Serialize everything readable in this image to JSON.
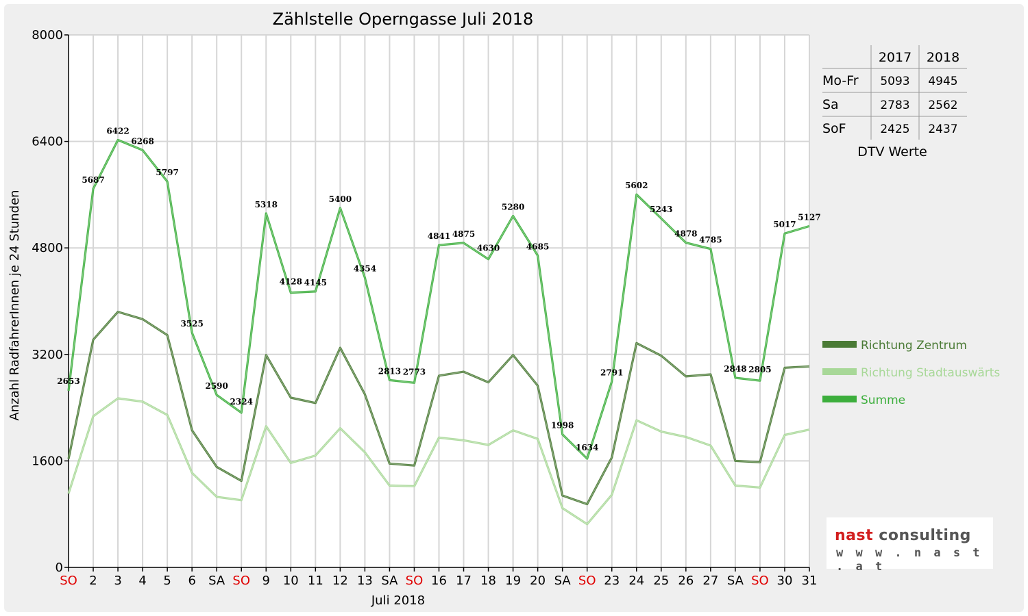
{
  "chart_data": {
    "type": "line",
    "title": "Zählstelle Operngasse Juli 2018",
    "xlabel": "Juli 2018",
    "ylabel": "Anzahl RadfahrerInnen je 24 Stunden",
    "ylim": [
      0,
      8000
    ],
    "yticks": [
      "0",
      "1600",
      "3200",
      "4800",
      "6400",
      "8000"
    ],
    "grid": true,
    "legend_position": "right",
    "categories": [
      "SO",
      "2",
      "3",
      "4",
      "5",
      "6",
      "SA",
      "SO",
      "9",
      "10",
      "11",
      "12",
      "13",
      "SA",
      "SO",
      "16",
      "17",
      "18",
      "19",
      "20",
      "SA",
      "SO",
      "23",
      "24",
      "25",
      "26",
      "27",
      "SA",
      "SO",
      "30",
      "31"
    ],
    "red_categories": [
      0,
      7,
      14,
      21,
      28
    ],
    "series": [
      {
        "name": "Richtung Zentrum",
        "color": "#4a7a35",
        "values": [
          1630,
          3420,
          3840,
          3730,
          3490,
          2060,
          1510,
          1300,
          3190,
          2550,
          2470,
          3300,
          2600,
          1560,
          1530,
          2880,
          2940,
          2780,
          3190,
          2730,
          1080,
          950,
          1650,
          3370,
          3180,
          2870,
          2900,
          1600,
          1580,
          3000,
          3020
        ]
      },
      {
        "name": "Richtung Stadtauswärts",
        "color": "#a8d898",
        "values": [
          1110,
          2270,
          2540,
          2490,
          2290,
          1420,
          1060,
          1010,
          2120,
          1570,
          1680,
          2090,
          1730,
          1230,
          1220,
          1950,
          1910,
          1840,
          2060,
          1930,
          890,
          650,
          1090,
          2210,
          2040,
          1960,
          1830,
          1230,
          1200,
          1990,
          2070
        ]
      },
      {
        "name": "Summe",
        "color": "#3cae3c",
        "values": [
          2653,
          5687,
          6422,
          6268,
          5797,
          3525,
          2590,
          2324,
          5318,
          4128,
          4145,
          5400,
          4354,
          2813,
          2773,
          4841,
          4875,
          4630,
          5280,
          4685,
          1998,
          1634,
          2791,
          5602,
          5243,
          4878,
          4785,
          2848,
          2805,
          5017,
          5127
        ]
      }
    ],
    "data_labels": [
      "2653",
      "5687",
      "6422",
      "6268",
      "5797",
      "3525",
      "2590",
      "2324",
      "5318",
      "4128",
      "4145",
      "5400",
      "4354",
      "2813",
      "2773",
      "4841",
      "4875",
      "4630",
      "5280",
      "4685",
      "1998",
      "1634",
      "2791",
      "5602",
      "5243",
      "4878",
      "4785",
      "2848",
      "2805",
      "5017",
      "5127"
    ]
  },
  "dtv_table": {
    "caption": "DTV Werte",
    "headers": [
      "",
      "2017",
      "2018"
    ],
    "rows": [
      {
        "label": "Mo-Fr",
        "v2017": "5093",
        "v2018": "4945"
      },
      {
        "label": "Sa",
        "v2017": "2783",
        "v2018": "2562"
      },
      {
        "label": "SoF",
        "v2017": "2425",
        "v2018": "2437"
      }
    ]
  },
  "logo": {
    "brand_red": "nast",
    "brand_grey": "consulting",
    "url": "w w w . n a s t . a t"
  }
}
